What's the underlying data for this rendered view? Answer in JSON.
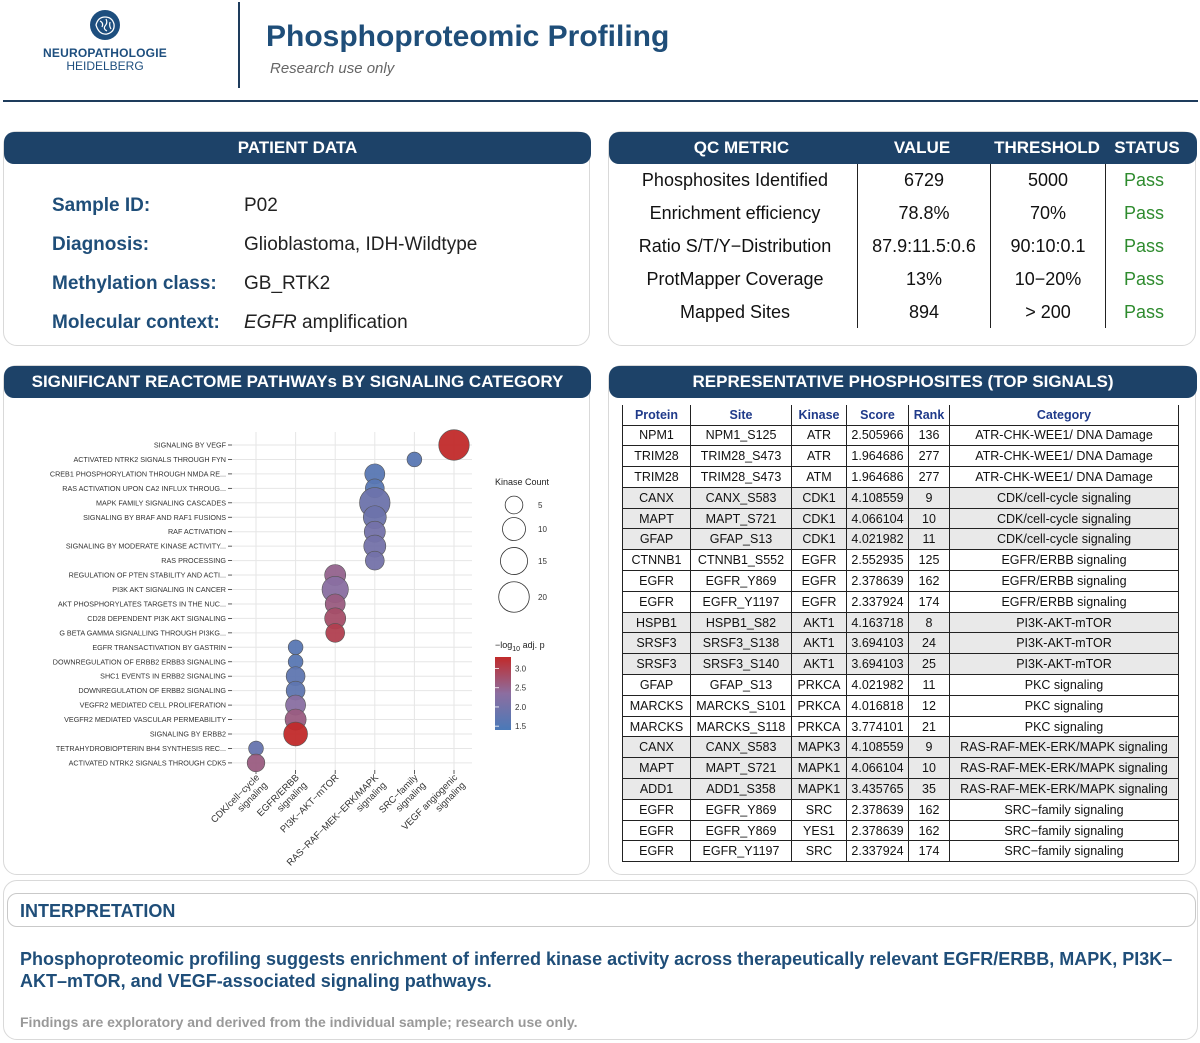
{
  "header": {
    "logo_line1": "NEUROPATHOLOGIE",
    "logo_line2": "HEIDELBERG",
    "title": "Phosphoproteomic Profiling",
    "subtitle": "Research use only"
  },
  "patient": {
    "heading": "PATIENT DATA",
    "rows": [
      {
        "label": "Sample ID:",
        "value": "P02"
      },
      {
        "label": "Diagnosis:",
        "value": "Glioblastoma, IDH-Wildtype"
      },
      {
        "label": "Methylation class:",
        "value": "GB_RTK2"
      },
      {
        "label": "Molecular context:",
        "value_italic": "EGFR",
        "value": " amplification"
      }
    ]
  },
  "qc": {
    "headers": [
      "QC METRIC",
      "VALUE",
      "THRESHOLD",
      "STATUS"
    ],
    "rows": [
      [
        "Phosphosites Identified",
        "6729",
        "5000",
        "Pass"
      ],
      [
        "Enrichment efficiency",
        "78.8%",
        "70%",
        "Pass"
      ],
      [
        "Ratio S/T/Y−Distribution",
        "87.9:11.5:0.6",
        "90:10:0.1",
        "Pass"
      ],
      [
        "ProtMapper Coverage",
        "13%",
        "10−20%",
        "Pass"
      ],
      [
        "Mapped Sites",
        "894",
        "> 200",
        "Pass"
      ]
    ]
  },
  "pathways": {
    "heading": "SIGNIFICANT REACTOME PATHWAYs BY SIGNALING CATEGORY"
  },
  "chart_data": {
    "type": "scatter",
    "title": "",
    "xlabel": "",
    "ylabel": "",
    "categories": [
      "CDK/cell−cycle signaling",
      "EGFR/ERBB signaling",
      "PI3K−AKT−mTOR",
      "RAS−RAF−MEK−ERK/MAPK signaling",
      "SRC−family signaling",
      "VEGF angiogenic signaling"
    ],
    "pathways": [
      "SIGNALING BY VEGF",
      "ACTIVATED NTRK2 SIGNALS THROUGH FYN",
      "CREB1 PHOSPHORYLATION THROUGH NMDA RE...",
      "RAS ACTIVATION UPON CA2 INFLUX THROUG...",
      "MAPK FAMILY SIGNALING CASCADES",
      "SIGNALING BY BRAF AND RAF1 FUSIONS",
      "RAF ACTIVATION",
      "SIGNALING BY MODERATE KINASE ACTIVITY...",
      "RAS PROCESSING",
      "REGULATION OF PTEN STABILITY AND ACTI...",
      "PI3K AKT SIGNALING IN CANCER",
      "AKT PHOSPHORYLATES TARGETS IN THE NUC...",
      "CD28 DEPENDENT PI3K AKT SIGNALING",
      "G BETA GAMMA SIGNALLING THROUGH PI3KG...",
      "EGFR TRANSACTIVATION BY GASTRIN",
      "DOWNREGULATION OF ERBB2 ERBB3 SIGNALING",
      "SHC1 EVENTS IN ERBB2 SIGNALING",
      "DOWNREGULATION OF ERBB2 SIGNALING",
      "VEGFR2 MEDIATED CELL PROLIFERATION",
      "VEGFR2 MEDIATED VASCULAR PERMEABILITY",
      "SIGNALING BY ERBB2",
      "TETRAHYDROBIOPTERIN BH4 SYNTHESIS REC...",
      "ACTIVATED NTRK2 SIGNALS THROUGH CDK5"
    ],
    "points": [
      {
        "pathway": "SIGNALING BY VEGF",
        "category": "VEGF angiogenic signaling",
        "kinase_count": 20,
        "neglog10p": 3.3
      },
      {
        "pathway": "ACTIVATED NTRK2 SIGNALS THROUGH FYN",
        "category": "SRC−family signaling",
        "kinase_count": 3,
        "neglog10p": 1.6
      },
      {
        "pathway": "CREB1 PHOSPHORYLATION THROUGH NMDA RE...",
        "category": "RAS−RAF−MEK−ERK/MAPK signaling",
        "kinase_count": 7,
        "neglog10p": 1.6
      },
      {
        "pathway": "RAS ACTIVATION UPON CA2 INFLUX THROUG...",
        "category": "RAS−RAF−MEK−ERK/MAPK signaling",
        "kinase_count": 6,
        "neglog10p": 1.6
      },
      {
        "pathway": "MAPK FAMILY SIGNALING CASCADES",
        "category": "RAS−RAF−MEK−ERK/MAPK signaling",
        "kinase_count": 20,
        "neglog10p": 1.9
      },
      {
        "pathway": "SIGNALING BY BRAF AND RAF1 FUSIONS",
        "category": "RAS−RAF−MEK−ERK/MAPK signaling",
        "kinase_count": 10,
        "neglog10p": 1.9
      },
      {
        "pathway": "RAF ACTIVATION",
        "category": "RAS−RAF−MEK−ERK/MAPK signaling",
        "kinase_count": 8,
        "neglog10p": 2.0
      },
      {
        "pathway": "SIGNALING BY MODERATE KINASE ACTIVITY...",
        "category": "RAS−RAF−MEK−ERK/MAPK signaling",
        "kinase_count": 9,
        "neglog10p": 2.0
      },
      {
        "pathway": "RAS PROCESSING",
        "category": "RAS−RAF−MEK−ERK/MAPK signaling",
        "kinase_count": 6,
        "neglog10p": 2.0
      },
      {
        "pathway": "REGULATION OF PTEN STABILITY AND ACTI...",
        "category": "PI3K−AKT−mTOR",
        "kinase_count": 8,
        "neglog10p": 2.5
      },
      {
        "pathway": "PI3K AKT SIGNALING IN CANCER",
        "category": "PI3K−AKT−mTOR",
        "kinase_count": 14,
        "neglog10p": 2.3
      },
      {
        "pathway": "AKT PHOSPHORYLATES TARGETS IN THE NUC...",
        "category": "PI3K−AKT−mTOR",
        "kinase_count": 7,
        "neglog10p": 2.6
      },
      {
        "pathway": "CD28 DEPENDENT PI3K AKT SIGNALING",
        "category": "PI3K−AKT−mTOR",
        "kinase_count": 8,
        "neglog10p": 2.8
      },
      {
        "pathway": "G BETA GAMMA SIGNALLING THROUGH PI3KG...",
        "category": "PI3K−AKT−mTOR",
        "kinase_count": 6,
        "neglog10p": 3.0
      },
      {
        "pathway": "EGFR TRANSACTIVATION BY GASTRIN",
        "category": "EGFR/ERBB signaling",
        "kinase_count": 3,
        "neglog10p": 1.6
      },
      {
        "pathway": "DOWNREGULATION OF ERBB2 ERBB3 SIGNALING",
        "category": "EGFR/ERBB signaling",
        "kinase_count": 3,
        "neglog10p": 1.6
      },
      {
        "pathway": "SHC1 EVENTS IN ERBB2 SIGNALING",
        "category": "EGFR/ERBB signaling",
        "kinase_count": 6,
        "neglog10p": 1.7
      },
      {
        "pathway": "DOWNREGULATION OF ERBB2 SIGNALING",
        "category": "EGFR/ERBB signaling",
        "kinase_count": 6,
        "neglog10p": 1.7
      },
      {
        "pathway": "VEGFR2 MEDIATED CELL PROLIFERATION",
        "category": "EGFR/ERBB signaling",
        "kinase_count": 7,
        "neglog10p": 2.3
      },
      {
        "pathway": "VEGFR2 MEDIATED VASCULAR PERMEABILITY",
        "category": "EGFR/ERBB signaling",
        "kinase_count": 8,
        "neglog10p": 2.6
      },
      {
        "pathway": "SIGNALING BY ERBB2",
        "category": "EGFR/ERBB signaling",
        "kinase_count": 11,
        "neglog10p": 3.3
      },
      {
        "pathway": "TETRAHYDROBIOPTERIN BH4 SYNTHESIS REC...",
        "category": "CDK/cell−cycle signaling",
        "kinase_count": 3,
        "neglog10p": 1.8
      },
      {
        "pathway": "ACTIVATED NTRK2 SIGNALS THROUGH CDK5",
        "category": "CDK/cell−cycle signaling",
        "kinase_count": 5,
        "neglog10p": 2.6
      }
    ],
    "size_legend": {
      "title": "Kinase Count",
      "values": [
        5,
        10,
        15,
        20
      ]
    },
    "color_legend": {
      "title_prefix": "−log",
      "title_sub": "10",
      "title_suffix": " adj. p",
      "ticks": [
        3.0,
        2.5,
        2.0,
        1.5
      ],
      "range": [
        1.4,
        3.3
      ],
      "low_color": "#4a79b8",
      "high_color": "#c12a2a"
    },
    "grid": true
  },
  "sites": {
    "heading": "REPRESENTATIVE PHOSPHOSITES (TOP SIGNALS)",
    "columns": [
      "Protein",
      "Site",
      "Kinase",
      "Score",
      "Rank",
      "Category"
    ],
    "rows": [
      {
        "cells": [
          "NPM1",
          "NPM1_S125",
          "ATR",
          "2.505966",
          "136",
          "ATR-CHK-WEE1/ DNA Damage"
        ],
        "gray": false
      },
      {
        "cells": [
          "TRIM28",
          "TRIM28_S473",
          "ATR",
          "1.964686",
          "277",
          "ATR-CHK-WEE1/ DNA Damage"
        ],
        "gray": false
      },
      {
        "cells": [
          "TRIM28",
          "TRIM28_S473",
          "ATM",
          "1.964686",
          "277",
          "ATR-CHK-WEE1/ DNA Damage"
        ],
        "gray": false
      },
      {
        "cells": [
          "CANX",
          "CANX_S583",
          "CDK1",
          "4.108559",
          "9",
          "CDK/cell-cycle signaling"
        ],
        "gray": true
      },
      {
        "cells": [
          "MAPT",
          "MAPT_S721",
          "CDK1",
          "4.066104",
          "10",
          "CDK/cell-cycle signaling"
        ],
        "gray": true
      },
      {
        "cells": [
          "GFAP",
          "GFAP_S13",
          "CDK1",
          "4.021982",
          "11",
          "CDK/cell-cycle signaling"
        ],
        "gray": true
      },
      {
        "cells": [
          "CTNNB1",
          "CTNNB1_S552",
          "EGFR",
          "2.552935",
          "125",
          "EGFR/ERBB signaling"
        ],
        "gray": false
      },
      {
        "cells": [
          "EGFR",
          "EGFR_Y869",
          "EGFR",
          "2.378639",
          "162",
          "EGFR/ERBB signaling"
        ],
        "gray": false
      },
      {
        "cells": [
          "EGFR",
          "EGFR_Y1197",
          "EGFR",
          "2.337924",
          "174",
          "EGFR/ERBB signaling"
        ],
        "gray": false
      },
      {
        "cells": [
          "HSPB1",
          "HSPB1_S82",
          "AKT1",
          "4.163718",
          "8",
          "PI3K-AKT-mTOR"
        ],
        "gray": true
      },
      {
        "cells": [
          "SRSF3",
          "SRSF3_S138",
          "AKT1",
          "3.694103",
          "24",
          "PI3K-AKT-mTOR"
        ],
        "gray": true
      },
      {
        "cells": [
          "SRSF3",
          "SRSF3_S140",
          "AKT1",
          "3.694103",
          "25",
          "PI3K-AKT-mTOR"
        ],
        "gray": true
      },
      {
        "cells": [
          "GFAP",
          "GFAP_S13",
          "PRKCA",
          "4.021982",
          "11",
          "PKC signaling"
        ],
        "gray": false
      },
      {
        "cells": [
          "MARCKS",
          "MARCKS_S101",
          "PRKCA",
          "4.016818",
          "12",
          "PKC signaling"
        ],
        "gray": false
      },
      {
        "cells": [
          "MARCKS",
          "MARCKS_S118",
          "PRKCA",
          "3.774101",
          "21",
          "PKC signaling"
        ],
        "gray": false
      },
      {
        "cells": [
          "CANX",
          "CANX_S583",
          "MAPK3",
          "4.108559",
          "9",
          "RAS-RAF-MEK-ERK/MAPK signaling"
        ],
        "gray": true
      },
      {
        "cells": [
          "MAPT",
          "MAPT_S721",
          "MAPK1",
          "4.066104",
          "10",
          "RAS-RAF-MEK-ERK/MAPK signaling"
        ],
        "gray": true
      },
      {
        "cells": [
          "ADD1",
          "ADD1_S358",
          "MAPK1",
          "3.435765",
          "35",
          "RAS-RAF-MEK-ERK/MAPK signaling"
        ],
        "gray": true
      },
      {
        "cells": [
          "EGFR",
          "EGFR_Y869",
          "SRC",
          "2.378639",
          "162",
          "SRC−family signaling"
        ],
        "gray": false
      },
      {
        "cells": [
          "EGFR",
          "EGFR_Y869",
          "YES1",
          "2.378639",
          "162",
          "SRC−family signaling"
        ],
        "gray": false
      },
      {
        "cells": [
          "EGFR",
          "EGFR_Y1197",
          "SRC",
          "2.337924",
          "174",
          "SRC−family signaling"
        ],
        "gray": false
      }
    ]
  },
  "interpretation": {
    "heading": "INTERPRETATION",
    "main": "Phosphoproteomic profiling suggests enrichment of inferred kinase activity across therapeutically relevant EGFR/ERBB, MAPK, PI3K–AKT–mTOR, and VEGF-associated signaling pathways.",
    "note": "Findings are exploratory and derived from the individual sample; research use only."
  },
  "colors": {
    "navy": "#1d4268",
    "title_blue": "#1f4e79",
    "pass_green": "#2e8b2e"
  }
}
